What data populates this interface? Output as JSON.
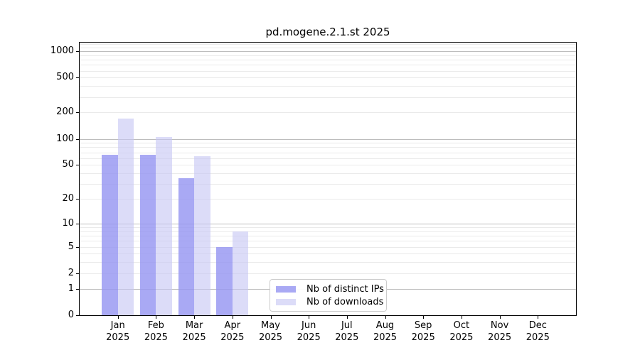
{
  "title": "pd.mogene.2.1.st 2025",
  "legend": {
    "items": [
      {
        "label": "Nb of distinct IPs",
        "color": "#a9a9f4",
        "fill": "rgba(150,150,242,0.82)"
      },
      {
        "label": "Nb of downloads",
        "color": "#dcdcf8",
        "fill": "rgba(199,199,244,0.62)"
      }
    ]
  },
  "chart_data": {
    "type": "bar",
    "title": "pd.mogene.2.1.st 2025",
    "categories": [
      "Jan 2025",
      "Feb 2025",
      "Mar 2025",
      "Apr 2025",
      "May 2025",
      "Jun 2025",
      "Jul 2025",
      "Aug 2025",
      "Sep 2025",
      "Oct 2025",
      "Nov 2025",
      "Dec 2025"
    ],
    "months": [
      "Jan",
      "Feb",
      "Mar",
      "Apr",
      "May",
      "Jun",
      "Jul",
      "Aug",
      "Sep",
      "Oct",
      "Nov",
      "Dec"
    ],
    "year_label": "2025",
    "series": [
      {
        "name": "Nb of distinct IPs",
        "values": [
          65,
          65,
          35,
          5,
          0,
          0,
          0,
          0,
          0,
          0,
          0,
          0
        ]
      },
      {
        "name": "Nb of downloads",
        "values": [
          170,
          105,
          63,
          8,
          0,
          0,
          0,
          0,
          0,
          0,
          0,
          0
        ]
      }
    ],
    "xlabel": "",
    "ylabel": "",
    "y_scale": "log1p",
    "ylim": [
      0,
      1250
    ],
    "y_ticks": [
      0,
      1,
      2,
      5,
      10,
      20,
      50,
      100,
      200,
      500,
      1000
    ],
    "y_major_grid": [
      1,
      10,
      100,
      1000
    ],
    "y_minor_grid": [
      2,
      3,
      4,
      5,
      6,
      7,
      8,
      9,
      20,
      30,
      40,
      50,
      60,
      70,
      80,
      90,
      200,
      300,
      400,
      500,
      600,
      700,
      800,
      900,
      1100,
      1200
    ],
    "grid": "both",
    "legend_position": "inside lower center"
  },
  "colors": {
    "background": "#ffffff",
    "axis": "#000000",
    "text": "#000000",
    "major_grid": "#bdbdbd",
    "minor_grid": "#eaeaea",
    "legend_border": "#cccccc"
  }
}
